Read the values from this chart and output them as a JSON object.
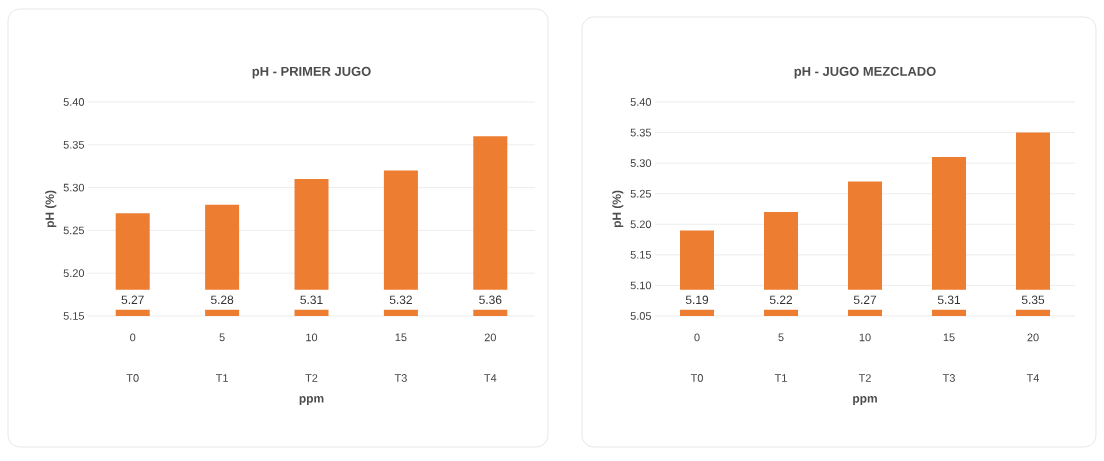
{
  "chart_data": [
    {
      "type": "bar",
      "title": "pH - PRIMER JUGO",
      "xlabel": "ppm",
      "ylabel": "pH (%)",
      "categories": [
        "0",
        "5",
        "10",
        "15",
        "20"
      ],
      "values": [
        5.27,
        5.28,
        5.31,
        5.32,
        5.36
      ],
      "color": "#ed7d31",
      "ylim": [
        5.15,
        5.4
      ],
      "yticks": [
        {
          "value": 5.15,
          "label": "5.15"
        },
        {
          "value": 5.2,
          "label": "5.20"
        },
        {
          "value": 5.25,
          "label": "5.25"
        },
        {
          "value": 5.3,
          "label": "5.30"
        },
        {
          "value": 5.35,
          "label": "5.35"
        },
        {
          "value": 5.4,
          "label": "5.40"
        }
      ],
      "grid": "y",
      "data_labels": true,
      "annotations": [
        "T0",
        "T1",
        "T2",
        "T3",
        "T4"
      ]
    },
    {
      "type": "bar",
      "title": "pH - JUGO MEZCLADO",
      "xlabel": "ppm",
      "ylabel": "pH (%)",
      "categories": [
        "0",
        "5",
        "10",
        "15",
        "20"
      ],
      "values": [
        5.19,
        5.22,
        5.27,
        5.31,
        5.35
      ],
      "color": "#ed7d31",
      "ylim": [
        5.05,
        5.4
      ],
      "yticks": [
        {
          "value": 5.05,
          "label": "5.05"
        },
        {
          "value": 5.1,
          "label": "5.10"
        },
        {
          "value": 5.15,
          "label": "5.15"
        },
        {
          "value": 5.2,
          "label": "5.20"
        },
        {
          "value": 5.25,
          "label": "5.25"
        },
        {
          "value": 5.3,
          "label": "5.30"
        },
        {
          "value": 5.35,
          "label": "5.35"
        },
        {
          "value": 5.4,
          "label": "5.40"
        }
      ],
      "grid": "y",
      "data_labels": true,
      "annotations": [
        "T0",
        "T1",
        "T2",
        "T3",
        "T4"
      ]
    }
  ]
}
